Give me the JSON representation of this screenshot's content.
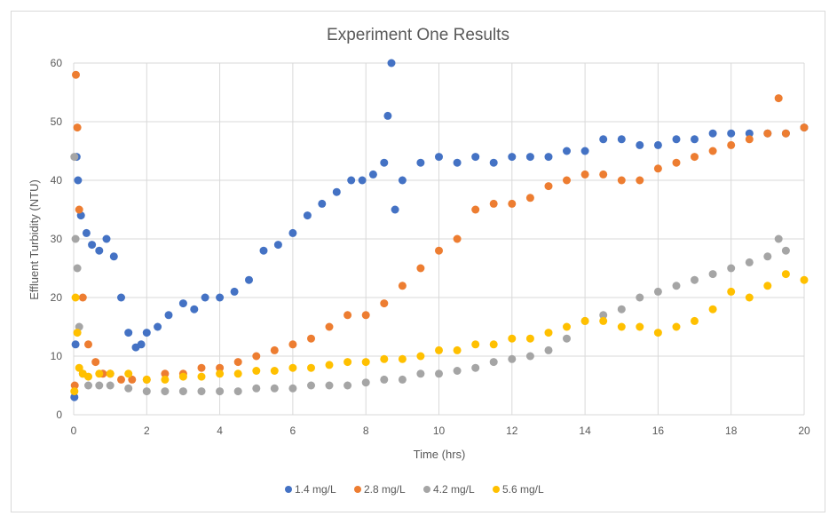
{
  "chart_data": {
    "type": "scatter",
    "title": "Experiment One Results",
    "xlabel": "Time (hrs)",
    "ylabel": "Effluent Turbidity (NTU)",
    "xlim": [
      0,
      20
    ],
    "ylim": [
      0,
      60
    ],
    "x_ticks": [
      0,
      2,
      4,
      6,
      8,
      10,
      12,
      14,
      16,
      18,
      20
    ],
    "y_ticks": [
      0,
      10,
      20,
      30,
      40,
      50,
      60
    ],
    "grid": true,
    "legend_position": "bottom",
    "series": [
      {
        "name": "1.4 mg/L",
        "color": "#4472C4",
        "x": [
          0.02,
          0.05,
          0.08,
          0.12,
          0.2,
          0.35,
          0.5,
          0.7,
          0.9,
          1.1,
          1.3,
          1.5,
          1.7,
          1.85,
          2.0,
          2.3,
          2.6,
          3.0,
          3.3,
          3.6,
          4.0,
          4.4,
          4.8,
          5.2,
          5.6,
          6.0,
          6.4,
          6.8,
          7.2,
          7.6,
          7.9,
          8.2,
          8.5,
          8.6,
          8.7,
          8.8,
          9.0,
          9.5,
          10.0,
          10.5,
          11.0,
          11.5,
          12.0,
          12.5,
          13.0,
          13.5,
          14.0,
          14.5,
          15.0,
          15.5,
          16.0,
          16.5,
          17.0,
          17.5,
          18.0,
          18.5,
          19.0,
          19.5,
          20.0
        ],
        "y": [
          3,
          12,
          44,
          40,
          34,
          31,
          29,
          28,
          30,
          27,
          20,
          14,
          11.5,
          12,
          14,
          15,
          17,
          19,
          18,
          20,
          20,
          21,
          23,
          28,
          29,
          31,
          34,
          36,
          38,
          40,
          40,
          41,
          43,
          51,
          60,
          35,
          40,
          43,
          44,
          43,
          44,
          43,
          44,
          44,
          44,
          45,
          45,
          47,
          47,
          46,
          46,
          47,
          47,
          48,
          48,
          48,
          48,
          48,
          49
        ]
      },
      {
        "name": "2.8 mg/L",
        "color": "#ED7D31",
        "x": [
          0.03,
          0.06,
          0.1,
          0.15,
          0.25,
          0.4,
          0.6,
          0.8,
          1.0,
          1.3,
          1.6,
          2.0,
          2.5,
          3.0,
          3.5,
          4.0,
          4.5,
          5.0,
          5.5,
          6.0,
          6.5,
          7.0,
          7.5,
          8.0,
          8.5,
          9.0,
          9.5,
          10.0,
          10.5,
          11.0,
          11.5,
          12.0,
          12.5,
          13.0,
          13.5,
          14.0,
          14.5,
          15.0,
          15.5,
          16.0,
          16.5,
          17.0,
          17.5,
          18.0,
          18.5,
          19.0,
          19.3,
          19.5,
          20.0
        ],
        "y": [
          5,
          58,
          49,
          35,
          20,
          12,
          9,
          7,
          7,
          6,
          6,
          6,
          7,
          7,
          8,
          8,
          9,
          10,
          11,
          12,
          13,
          15,
          17,
          17,
          19,
          22,
          25,
          28,
          30,
          35,
          36,
          36,
          37,
          39,
          40,
          41,
          41,
          40,
          40,
          42,
          43,
          44,
          45,
          46,
          47,
          48,
          54,
          48,
          49
        ]
      },
      {
        "name": "4.2 mg/L",
        "color": "#A5A5A5",
        "x": [
          0.02,
          0.05,
          0.1,
          0.15,
          0.25,
          0.4,
          0.7,
          1.0,
          1.5,
          2.0,
          2.5,
          3.0,
          3.5,
          4.0,
          4.5,
          5.0,
          5.5,
          6.0,
          6.5,
          7.0,
          7.5,
          8.0,
          8.5,
          9.0,
          9.5,
          10.0,
          10.5,
          11.0,
          11.5,
          12.0,
          12.5,
          13.0,
          13.5,
          14.0,
          14.5,
          15.0,
          15.5,
          16.0,
          16.5,
          17.0,
          17.5,
          18.0,
          18.5,
          19.0,
          19.3,
          19.5
        ],
        "y": [
          44,
          30,
          25,
          15,
          7,
          5,
          5,
          5,
          4.5,
          4,
          4,
          4,
          4,
          4,
          4,
          4.5,
          4.5,
          4.5,
          5,
          5,
          5,
          5.5,
          6,
          6,
          7,
          7,
          7.5,
          8,
          9,
          9.5,
          10,
          11,
          13,
          16,
          17,
          18,
          20,
          21,
          22,
          23,
          24,
          25,
          26,
          27,
          30,
          28
        ]
      },
      {
        "name": "5.6 mg/L",
        "color": "#FFC000",
        "x": [
          0.02,
          0.05,
          0.1,
          0.15,
          0.25,
          0.4,
          0.7,
          1.0,
          1.5,
          2.0,
          2.5,
          3.0,
          3.5,
          4.0,
          4.5,
          5.0,
          5.5,
          6.0,
          6.5,
          7.0,
          7.5,
          8.0,
          8.5,
          9.0,
          9.5,
          10.0,
          10.5,
          11.0,
          11.5,
          12.0,
          12.5,
          13.0,
          13.5,
          14.0,
          14.5,
          15.0,
          15.5,
          16.0,
          16.5,
          17.0,
          17.5,
          18.0,
          18.5,
          19.0,
          19.5,
          20.0
        ],
        "y": [
          4,
          20,
          14,
          8,
          7,
          6.5,
          7,
          7,
          7,
          6,
          6,
          6.5,
          6.5,
          7,
          7,
          7.5,
          7.5,
          8,
          8,
          8.5,
          9,
          9,
          9.5,
          9.5,
          10,
          11,
          11,
          12,
          12,
          13,
          13,
          14,
          15,
          16,
          16,
          15,
          15,
          14,
          15,
          16,
          18,
          21,
          20,
          22,
          24,
          23
        ]
      }
    ]
  }
}
